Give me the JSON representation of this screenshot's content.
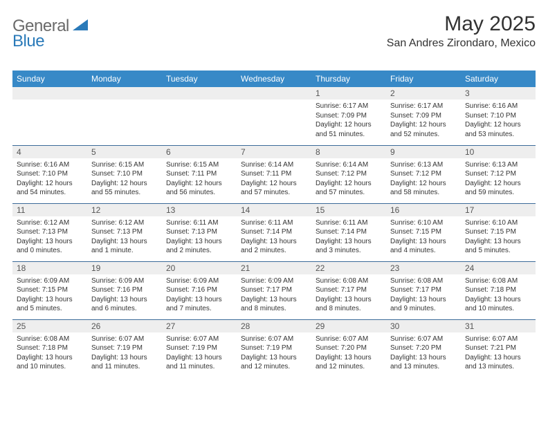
{
  "brand": {
    "text1": "General",
    "text2": "Blue"
  },
  "title": "May 2025",
  "location": "San Andres Zirondaro, Mexico",
  "header_bg": "#3789c7",
  "header_fg": "#ffffff",
  "daynum_bg": "#eeeeee",
  "row_border": "#3a6a98",
  "weekdays": [
    "Sunday",
    "Monday",
    "Tuesday",
    "Wednesday",
    "Thursday",
    "Friday",
    "Saturday"
  ],
  "weeks": [
    [
      {
        "n": "",
        "lines": []
      },
      {
        "n": "",
        "lines": []
      },
      {
        "n": "",
        "lines": []
      },
      {
        "n": "",
        "lines": []
      },
      {
        "n": "1",
        "lines": [
          "Sunrise: 6:17 AM",
          "Sunset: 7:09 PM",
          "Daylight: 12 hours and 51 minutes."
        ]
      },
      {
        "n": "2",
        "lines": [
          "Sunrise: 6:17 AM",
          "Sunset: 7:09 PM",
          "Daylight: 12 hours and 52 minutes."
        ]
      },
      {
        "n": "3",
        "lines": [
          "Sunrise: 6:16 AM",
          "Sunset: 7:10 PM",
          "Daylight: 12 hours and 53 minutes."
        ]
      }
    ],
    [
      {
        "n": "4",
        "lines": [
          "Sunrise: 6:16 AM",
          "Sunset: 7:10 PM",
          "Daylight: 12 hours and 54 minutes."
        ]
      },
      {
        "n": "5",
        "lines": [
          "Sunrise: 6:15 AM",
          "Sunset: 7:10 PM",
          "Daylight: 12 hours and 55 minutes."
        ]
      },
      {
        "n": "6",
        "lines": [
          "Sunrise: 6:15 AM",
          "Sunset: 7:11 PM",
          "Daylight: 12 hours and 56 minutes."
        ]
      },
      {
        "n": "7",
        "lines": [
          "Sunrise: 6:14 AM",
          "Sunset: 7:11 PM",
          "Daylight: 12 hours and 57 minutes."
        ]
      },
      {
        "n": "8",
        "lines": [
          "Sunrise: 6:14 AM",
          "Sunset: 7:12 PM",
          "Daylight: 12 hours and 57 minutes."
        ]
      },
      {
        "n": "9",
        "lines": [
          "Sunrise: 6:13 AM",
          "Sunset: 7:12 PM",
          "Daylight: 12 hours and 58 minutes."
        ]
      },
      {
        "n": "10",
        "lines": [
          "Sunrise: 6:13 AM",
          "Sunset: 7:12 PM",
          "Daylight: 12 hours and 59 minutes."
        ]
      }
    ],
    [
      {
        "n": "11",
        "lines": [
          "Sunrise: 6:12 AM",
          "Sunset: 7:13 PM",
          "Daylight: 13 hours and 0 minutes."
        ]
      },
      {
        "n": "12",
        "lines": [
          "Sunrise: 6:12 AM",
          "Sunset: 7:13 PM",
          "Daylight: 13 hours and 1 minute."
        ]
      },
      {
        "n": "13",
        "lines": [
          "Sunrise: 6:11 AM",
          "Sunset: 7:13 PM",
          "Daylight: 13 hours and 2 minutes."
        ]
      },
      {
        "n": "14",
        "lines": [
          "Sunrise: 6:11 AM",
          "Sunset: 7:14 PM",
          "Daylight: 13 hours and 2 minutes."
        ]
      },
      {
        "n": "15",
        "lines": [
          "Sunrise: 6:11 AM",
          "Sunset: 7:14 PM",
          "Daylight: 13 hours and 3 minutes."
        ]
      },
      {
        "n": "16",
        "lines": [
          "Sunrise: 6:10 AM",
          "Sunset: 7:15 PM",
          "Daylight: 13 hours and 4 minutes."
        ]
      },
      {
        "n": "17",
        "lines": [
          "Sunrise: 6:10 AM",
          "Sunset: 7:15 PM",
          "Daylight: 13 hours and 5 minutes."
        ]
      }
    ],
    [
      {
        "n": "18",
        "lines": [
          "Sunrise: 6:09 AM",
          "Sunset: 7:15 PM",
          "Daylight: 13 hours and 5 minutes."
        ]
      },
      {
        "n": "19",
        "lines": [
          "Sunrise: 6:09 AM",
          "Sunset: 7:16 PM",
          "Daylight: 13 hours and 6 minutes."
        ]
      },
      {
        "n": "20",
        "lines": [
          "Sunrise: 6:09 AM",
          "Sunset: 7:16 PM",
          "Daylight: 13 hours and 7 minutes."
        ]
      },
      {
        "n": "21",
        "lines": [
          "Sunrise: 6:09 AM",
          "Sunset: 7:17 PM",
          "Daylight: 13 hours and 8 minutes."
        ]
      },
      {
        "n": "22",
        "lines": [
          "Sunrise: 6:08 AM",
          "Sunset: 7:17 PM",
          "Daylight: 13 hours and 8 minutes."
        ]
      },
      {
        "n": "23",
        "lines": [
          "Sunrise: 6:08 AM",
          "Sunset: 7:17 PM",
          "Daylight: 13 hours and 9 minutes."
        ]
      },
      {
        "n": "24",
        "lines": [
          "Sunrise: 6:08 AM",
          "Sunset: 7:18 PM",
          "Daylight: 13 hours and 10 minutes."
        ]
      }
    ],
    [
      {
        "n": "25",
        "lines": [
          "Sunrise: 6:08 AM",
          "Sunset: 7:18 PM",
          "Daylight: 13 hours and 10 minutes."
        ]
      },
      {
        "n": "26",
        "lines": [
          "Sunrise: 6:07 AM",
          "Sunset: 7:19 PM",
          "Daylight: 13 hours and 11 minutes."
        ]
      },
      {
        "n": "27",
        "lines": [
          "Sunrise: 6:07 AM",
          "Sunset: 7:19 PM",
          "Daylight: 13 hours and 11 minutes."
        ]
      },
      {
        "n": "28",
        "lines": [
          "Sunrise: 6:07 AM",
          "Sunset: 7:19 PM",
          "Daylight: 13 hours and 12 minutes."
        ]
      },
      {
        "n": "29",
        "lines": [
          "Sunrise: 6:07 AM",
          "Sunset: 7:20 PM",
          "Daylight: 13 hours and 12 minutes."
        ]
      },
      {
        "n": "30",
        "lines": [
          "Sunrise: 6:07 AM",
          "Sunset: 7:20 PM",
          "Daylight: 13 hours and 13 minutes."
        ]
      },
      {
        "n": "31",
        "lines": [
          "Sunrise: 6:07 AM",
          "Sunset: 7:21 PM",
          "Daylight: 13 hours and 13 minutes."
        ]
      }
    ]
  ]
}
